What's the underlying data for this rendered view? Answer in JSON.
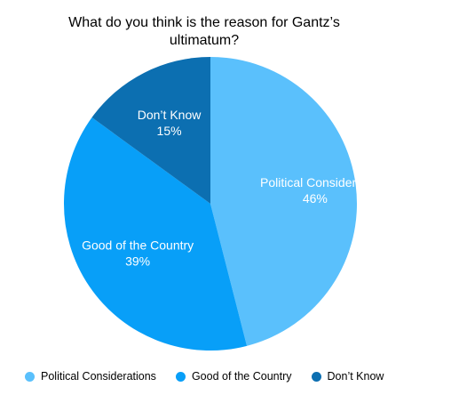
{
  "chart_data": {
    "type": "pie",
    "title_lines": [
      "What do you think is the reason for Gantz’s",
      "ultimatum?"
    ],
    "slices": [
      {
        "name": "Political Considerations",
        "chart_label": "Political Consideratı",
        "percent_label": "46%",
        "value": 46,
        "color": "#5AC0FC"
      },
      {
        "name": "Good of the Country",
        "chart_label": "Good of the Country",
        "percent_label": "39%",
        "value": 39,
        "color": "#089FF8"
      },
      {
        "name": "Don’t Know",
        "chart_label": "Don’t Know",
        "percent_label": "15%",
        "value": 15,
        "color": "#0C6FB1"
      }
    ],
    "legend": {
      "position": "bottom-left"
    },
    "grid": false
  }
}
